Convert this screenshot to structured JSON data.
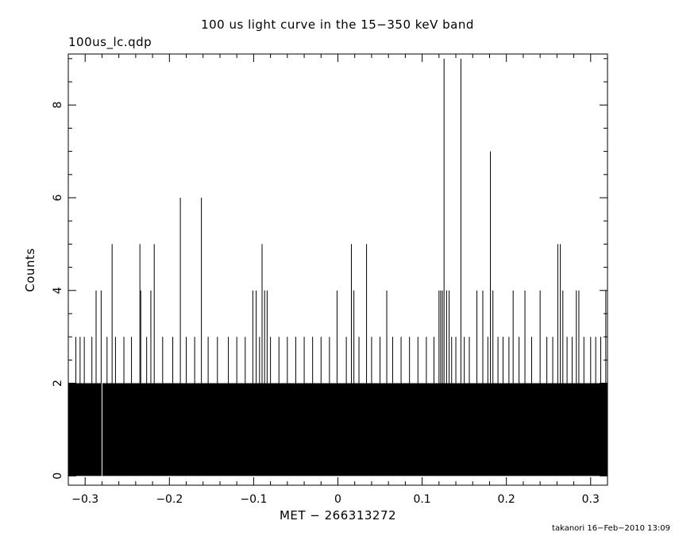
{
  "chart_data": {
    "type": "bar",
    "title": "100 us light curve in the 15−350 keV band",
    "subtitle": "100us_lc.qdp",
    "xlabel": "MET − 266313272",
    "ylabel": "Counts",
    "footer": "takanori 16−Feb−2010 13:09",
    "xlim": [
      -0.32,
      0.32
    ],
    "ylim": [
      -0.2,
      9.1
    ],
    "xticks": [
      -0.3,
      -0.2,
      -0.1,
      0,
      0.1,
      0.2,
      0.3
    ],
    "xtick_labels": [
      "−0.3",
      "−0.2",
      "−0.1",
      "0",
      "0.1",
      "0.2",
      "0.3"
    ],
    "yticks": [
      0,
      2,
      4,
      6,
      8
    ],
    "ytick_labels": [
      "0",
      "2",
      "4",
      "6",
      "8"
    ],
    "bin_width": 0.0001,
    "baseline_counts": 2,
    "bin_spacing_floor": 0.002,
    "notable_bins": [
      {
        "x": -0.311,
        "y": 3
      },
      {
        "x": -0.306,
        "y": 3
      },
      {
        "x": -0.301,
        "y": 3
      },
      {
        "x": -0.292,
        "y": 3
      },
      {
        "x": -0.287,
        "y": 4
      },
      {
        "x": -0.281,
        "y": 4
      },
      {
        "x": -0.28,
        "y": 0
      },
      {
        "x": -0.274,
        "y": 3
      },
      {
        "x": -0.268,
        "y": 5
      },
      {
        "x": -0.264,
        "y": 3
      },
      {
        "x": -0.254,
        "y": 3
      },
      {
        "x": -0.245,
        "y": 3
      },
      {
        "x": -0.235,
        "y": 5
      },
      {
        "x": -0.234,
        "y": 4
      },
      {
        "x": -0.227,
        "y": 3
      },
      {
        "x": -0.222,
        "y": 4
      },
      {
        "x": -0.218,
        "y": 5
      },
      {
        "x": -0.208,
        "y": 3
      },
      {
        "x": -0.196,
        "y": 3
      },
      {
        "x": -0.187,
        "y": 6
      },
      {
        "x": -0.18,
        "y": 3
      },
      {
        "x": -0.17,
        "y": 3
      },
      {
        "x": -0.162,
        "y": 6
      },
      {
        "x": -0.154,
        "y": 3
      },
      {
        "x": -0.143,
        "y": 3
      },
      {
        "x": -0.13,
        "y": 3
      },
      {
        "x": -0.12,
        "y": 3
      },
      {
        "x": -0.11,
        "y": 3
      },
      {
        "x": -0.101,
        "y": 4
      },
      {
        "x": -0.097,
        "y": 4
      },
      {
        "x": -0.093,
        "y": 3
      },
      {
        "x": -0.09,
        "y": 5
      },
      {
        "x": -0.087,
        "y": 4
      },
      {
        "x": -0.084,
        "y": 4
      },
      {
        "x": -0.08,
        "y": 3
      },
      {
        "x": -0.07,
        "y": 3
      },
      {
        "x": -0.06,
        "y": 3
      },
      {
        "x": -0.05,
        "y": 3
      },
      {
        "x": -0.04,
        "y": 3
      },
      {
        "x": -0.03,
        "y": 3
      },
      {
        "x": -0.02,
        "y": 3
      },
      {
        "x": -0.01,
        "y": 3
      },
      {
        "x": -0.001,
        "y": 4
      },
      {
        "x": 0.01,
        "y": 3
      },
      {
        "x": 0.016,
        "y": 5
      },
      {
        "x": 0.019,
        "y": 4
      },
      {
        "x": 0.025,
        "y": 3
      },
      {
        "x": 0.034,
        "y": 5
      },
      {
        "x": 0.04,
        "y": 3
      },
      {
        "x": 0.05,
        "y": 3
      },
      {
        "x": 0.058,
        "y": 4
      },
      {
        "x": 0.065,
        "y": 3
      },
      {
        "x": 0.075,
        "y": 3
      },
      {
        "x": 0.085,
        "y": 3
      },
      {
        "x": 0.095,
        "y": 3
      },
      {
        "x": 0.105,
        "y": 3
      },
      {
        "x": 0.114,
        "y": 3
      },
      {
        "x": 0.12,
        "y": 4
      },
      {
        "x": 0.122,
        "y": 4
      },
      {
        "x": 0.124,
        "y": 4
      },
      {
        "x": 0.126,
        "y": 9
      },
      {
        "x": 0.129,
        "y": 4
      },
      {
        "x": 0.132,
        "y": 4
      },
      {
        "x": 0.135,
        "y": 3
      },
      {
        "x": 0.14,
        "y": 3
      },
      {
        "x": 0.146,
        "y": 9
      },
      {
        "x": 0.15,
        "y": 3
      },
      {
        "x": 0.156,
        "y": 3
      },
      {
        "x": 0.165,
        "y": 4
      },
      {
        "x": 0.172,
        "y": 4
      },
      {
        "x": 0.178,
        "y": 3
      },
      {
        "x": 0.181,
        "y": 7
      },
      {
        "x": 0.184,
        "y": 4
      },
      {
        "x": 0.19,
        "y": 3
      },
      {
        "x": 0.196,
        "y": 3
      },
      {
        "x": 0.203,
        "y": 3
      },
      {
        "x": 0.208,
        "y": 4
      },
      {
        "x": 0.215,
        "y": 3
      },
      {
        "x": 0.222,
        "y": 4
      },
      {
        "x": 0.23,
        "y": 3
      },
      {
        "x": 0.24,
        "y": 4
      },
      {
        "x": 0.248,
        "y": 3
      },
      {
        "x": 0.255,
        "y": 3
      },
      {
        "x": 0.261,
        "y": 5
      },
      {
        "x": 0.264,
        "y": 5
      },
      {
        "x": 0.267,
        "y": 4
      },
      {
        "x": 0.272,
        "y": 3
      },
      {
        "x": 0.278,
        "y": 3
      },
      {
        "x": 0.283,
        "y": 4
      },
      {
        "x": 0.286,
        "y": 4
      },
      {
        "x": 0.292,
        "y": 3
      },
      {
        "x": 0.3,
        "y": 3
      },
      {
        "x": 0.306,
        "y": 3
      },
      {
        "x": 0.312,
        "y": 3
      },
      {
        "x": 0.318,
        "y": 4
      }
    ]
  }
}
